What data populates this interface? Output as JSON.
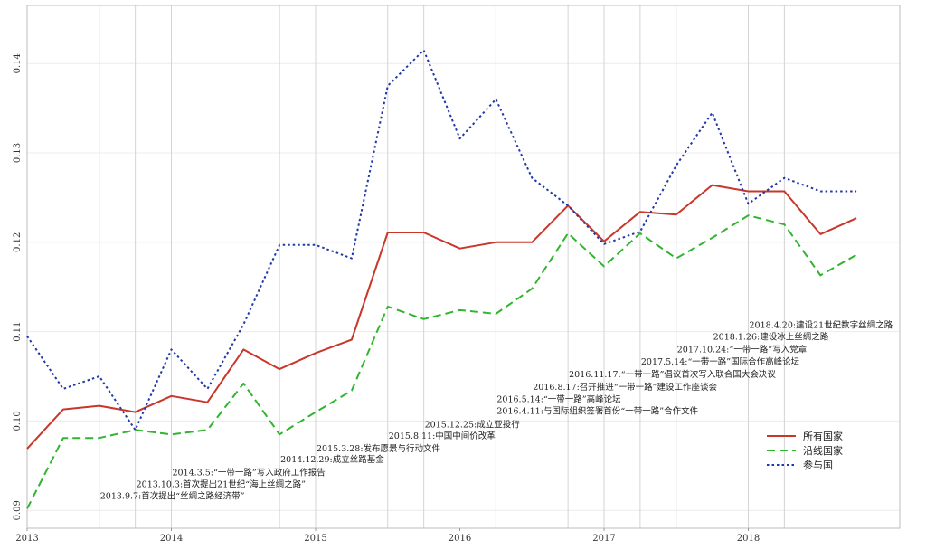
{
  "chart_data": {
    "type": "line",
    "title": "",
    "xlabel": "",
    "ylabel": "",
    "x_ticks": [
      "2013",
      "2014",
      "2015",
      "2016",
      "2017",
      "2018"
    ],
    "y_ticks": [
      "0.09",
      "0.10",
      "0.11",
      "0.12",
      "0.13",
      "0.14"
    ],
    "ylim": [
      0.088,
      0.1465
    ],
    "xlim": [
      2013.0,
      2019.05
    ],
    "grid": true,
    "legend_position": "right",
    "x": [
      2013.0,
      2013.25,
      2013.5,
      2013.75,
      2014.0,
      2014.25,
      2014.5,
      2014.75,
      2015.0,
      2015.25,
      2015.5,
      2015.75,
      2016.0,
      2016.25,
      2016.5,
      2016.75,
      2017.0,
      2017.25,
      2017.5,
      2017.75,
      2018.0,
      2018.25,
      2018.5,
      2018.75
    ],
    "series": [
      {
        "name": "所有国家",
        "color": "#c8372a",
        "dash": "solid",
        "values": [
          0.0969,
          0.1013,
          0.1017,
          0.101,
          0.1028,
          0.1021,
          0.108,
          0.1058,
          0.1076,
          0.1091,
          0.1211,
          0.1211,
          0.1193,
          0.12,
          0.12,
          0.1241,
          0.1201,
          0.1234,
          0.1231,
          0.1264,
          0.1257,
          0.1257,
          0.1209,
          0.1227
        ]
      },
      {
        "name": "沿线国家",
        "color": "#2fb52f",
        "dash": "dashed",
        "values": [
          0.0902,
          0.0981,
          0.0981,
          0.099,
          0.0985,
          0.099,
          0.1042,
          0.0985,
          0.101,
          0.1034,
          0.1128,
          0.1114,
          0.1124,
          0.112,
          0.1148,
          0.121,
          0.1173,
          0.121,
          0.1182,
          0.1205,
          0.123,
          0.122,
          0.1163,
          0.1186
        ]
      },
      {
        "name": "参与国",
        "color": "#2238a8",
        "dash": "dotted",
        "values": [
          0.1095,
          0.1036,
          0.105,
          0.099,
          0.108,
          0.1036,
          0.1108,
          0.1197,
          0.1197,
          0.1182,
          0.1375,
          0.1415,
          0.1316,
          0.136,
          0.1272,
          0.1241,
          0.1198,
          0.1212,
          0.1286,
          0.1345,
          0.1243,
          0.1272,
          0.1257,
          0.1257
        ]
      }
    ],
    "event_lines_x": [
      2013.5,
      2013.75,
      2014.0,
      2014.75,
      2015.0,
      2015.5,
      2015.75,
      2016.25,
      2016.75,
      2017.0,
      2017.25,
      2017.5,
      2018.0,
      2018.25
    ],
    "annotations": [
      {
        "text": "2013.9.7:首次提出“丝绸之路经济带”",
        "x": 2013.5,
        "y": 0.0913
      },
      {
        "text": "2013.10.3:首次提出21世纪“海上丝绸之路”",
        "x": 2013.75,
        "y": 0.0926
      },
      {
        "text": "2014.3.5:“一带一路”写入政府工作报告",
        "x": 2014.0,
        "y": 0.0939
      },
      {
        "text": "2014.12.29:成立丝路基金",
        "x": 2014.75,
        "y": 0.0954
      },
      {
        "text": "2015.3.28:发布愿景与行动文件",
        "x": 2015.0,
        "y": 0.0966
      },
      {
        "text": "2015.8.11:中国中间价改革",
        "x": 2015.5,
        "y": 0.098
      },
      {
        "text": "2015.12.25:成立亚投行",
        "x": 2015.75,
        "y": 0.0993
      },
      {
        "text": "2016.4.11:与国际组织签署首份“一带一路”合作文件",
        "x": 2016.25,
        "y": 0.1008
      },
      {
        "text": "2016.5.14:“一带一路”高峰论坛",
        "x": 2016.25,
        "y": 0.1021
      },
      {
        "text": "2016.8.17:召开推进“一带一路”建设工作座谈会",
        "x": 2016.5,
        "y": 0.1035
      },
      {
        "text": "2016.11.17:“一带一路”倡议首次写入联合国大会决议",
        "x": 2016.75,
        "y": 0.1049
      },
      {
        "text": "2017.5.14:“一带一路”国际合作高峰论坛",
        "x": 2017.25,
        "y": 0.1063
      },
      {
        "text": "2017.10.24:“一带一路”写入党章",
        "x": 2017.5,
        "y": 0.1077
      },
      {
        "text": "2018.1.26:建设冰上丝绸之路",
        "x": 2017.75,
        "y": 0.1091
      },
      {
        "text": "2018.4.20:建设21世纪数字丝绸之路",
        "x": 2018.0,
        "y": 0.1104
      }
    ]
  }
}
